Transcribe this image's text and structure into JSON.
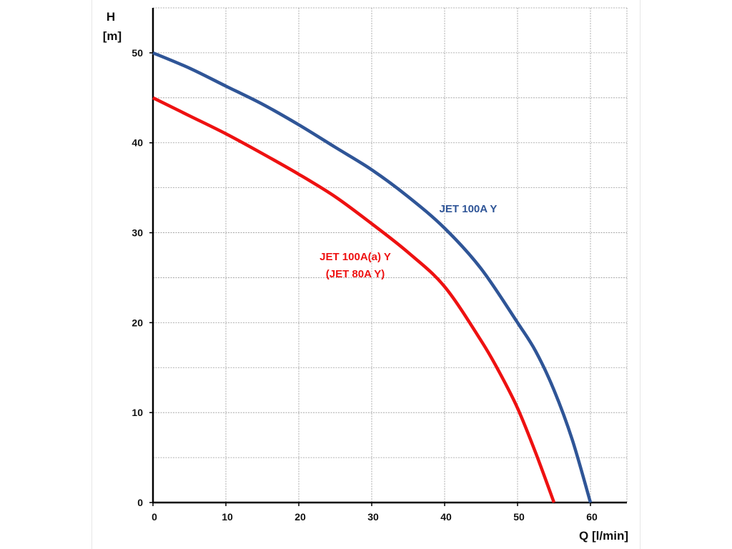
{
  "chart_data": {
    "type": "line",
    "xlabel": "Q [l/min]",
    "ylabel_line1": "H",
    "ylabel_line2": "[m]",
    "xlim": [
      0,
      65
    ],
    "ylim": [
      0,
      55
    ],
    "x_ticks": [
      0,
      10,
      20,
      30,
      40,
      50,
      60
    ],
    "y_ticks": [
      0,
      10,
      20,
      30,
      40,
      50
    ],
    "grid": true,
    "series": [
      {
        "name": "JET 100A Y",
        "color": "#2f5597",
        "x": [
          0,
          5,
          10,
          15,
          20,
          25,
          30,
          35,
          40,
          45,
          50,
          52.5,
          55,
          57.5,
          60
        ],
        "y": [
          50,
          48.3,
          46.3,
          44.3,
          42.0,
          39.5,
          37.0,
          34.0,
          30.5,
          26.0,
          20.0,
          16.8,
          12.5,
          7.0,
          0
        ]
      },
      {
        "name": "JET 100A(a) Y (JET 80A Y)",
        "color": "#ee1111",
        "x": [
          0,
          5,
          10,
          15,
          20,
          25,
          30,
          35,
          40,
          45,
          47.5,
          50,
          52.5,
          55
        ],
        "y": [
          45,
          43.0,
          41.0,
          38.8,
          36.5,
          34.0,
          31.0,
          27.8,
          24.0,
          18.0,
          14.5,
          10.5,
          5.5,
          0
        ]
      }
    ],
    "annotations": [
      {
        "text": "JET 100A Y",
        "color": "#2f5597"
      },
      {
        "text": "JET 100A(a) Y",
        "color": "#ee1111"
      },
      {
        "text": "(JET 80A Y)",
        "color": "#ee1111"
      }
    ]
  }
}
